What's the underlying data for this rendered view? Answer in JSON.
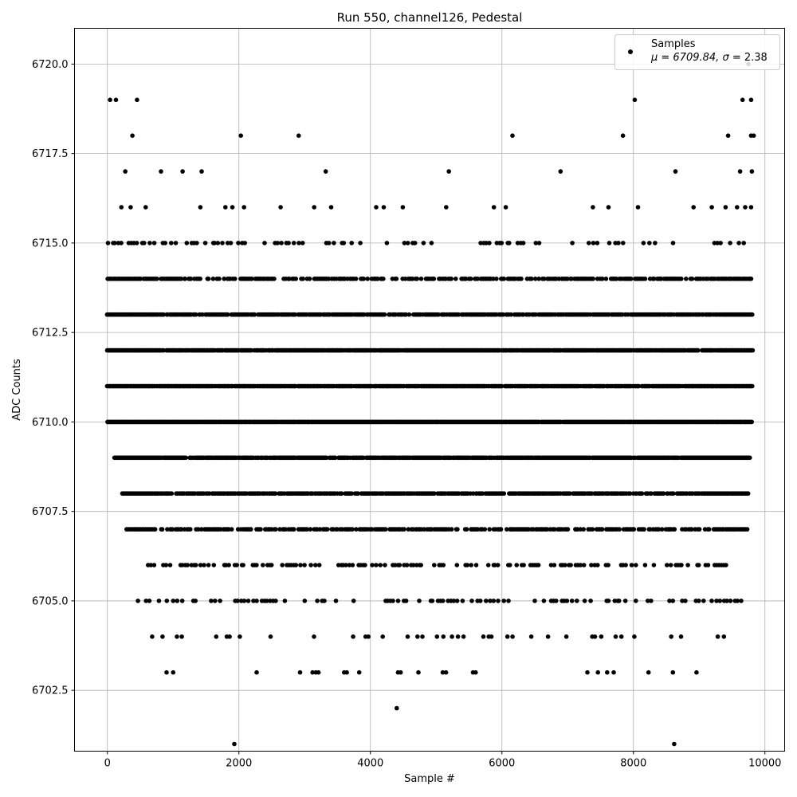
{
  "chart_data": {
    "type": "scatter",
    "title": "Run 550, channel126, Pedestal",
    "xlabel": "Sample #",
    "ylabel": "ADC Counts",
    "xlim": [
      -500,
      10300
    ],
    "ylim": [
      6700.8,
      6721.0
    ],
    "xticks": [
      0,
      2000,
      4000,
      6000,
      8000,
      10000
    ],
    "xtick_labels": [
      "0",
      "2000",
      "4000",
      "6000",
      "8000",
      "10000"
    ],
    "yticks": [
      6702.5,
      6705.0,
      6707.5,
      6710.0,
      6712.5,
      6715.0,
      6717.5,
      6720.0
    ],
    "ytick_labels": [
      "6702.5",
      "6705.0",
      "6707.5",
      "6710.0",
      "6712.5",
      "6715.0",
      "6717.5",
      "6720.0"
    ],
    "grid": true,
    "legend": {
      "placement": "top-right",
      "series_label": "Samples",
      "stats_prefix": "μ = 6709.84, ",
      "stats_sigma": "σ",
      "stats_suffix": " = 2.38"
    },
    "series": [
      {
        "name": "Samples",
        "color": "#000000",
        "approx_sample_count": 9850,
        "mean": 6709.84,
        "std": 2.38,
        "x_range": [
          0,
          9840
        ],
        "y_levels": [
          6701,
          6702,
          6703,
          6704,
          6705,
          6706,
          6707,
          6708,
          6709,
          6710,
          6711,
          6712,
          6713,
          6714,
          6715,
          6716,
          6717,
          6718,
          6719,
          6720
        ],
        "points": [
          [
            1930,
            6701
          ],
          [
            8620,
            6701
          ],
          [
            4400,
            6702
          ],
          [
            900,
            6703
          ],
          [
            1000,
            6703
          ],
          [
            2270,
            6703
          ],
          [
            2930,
            6703
          ],
          [
            3120,
            6703
          ],
          [
            3170,
            6703
          ],
          [
            3210,
            6703
          ],
          [
            3600,
            6703
          ],
          [
            3640,
            6703
          ],
          [
            3830,
            6703
          ],
          [
            4420,
            6703
          ],
          [
            4460,
            6703
          ],
          [
            4730,
            6703
          ],
          [
            5100,
            6703
          ],
          [
            5150,
            6703
          ],
          [
            5560,
            6703
          ],
          [
            5600,
            6703
          ],
          [
            7300,
            6703
          ],
          [
            7460,
            6703
          ],
          [
            7600,
            6703
          ],
          [
            7700,
            6703
          ],
          [
            8230,
            6703
          ],
          [
            8600,
            6703
          ],
          [
            8960,
            6703
          ],
          [
            380,
            6718
          ],
          [
            2030,
            6718
          ],
          [
            2910,
            6718
          ],
          [
            6160,
            6718
          ],
          [
            7840,
            6718
          ],
          [
            9440,
            6718
          ],
          [
            9790,
            6718
          ],
          [
            9830,
            6718
          ],
          [
            40,
            6719
          ],
          [
            130,
            6719
          ],
          [
            450,
            6719
          ],
          [
            8020,
            6719
          ],
          [
            9660,
            6719
          ],
          [
            9790,
            6719
          ],
          [
            9750,
            6720
          ]
        ]
      }
    ]
  }
}
